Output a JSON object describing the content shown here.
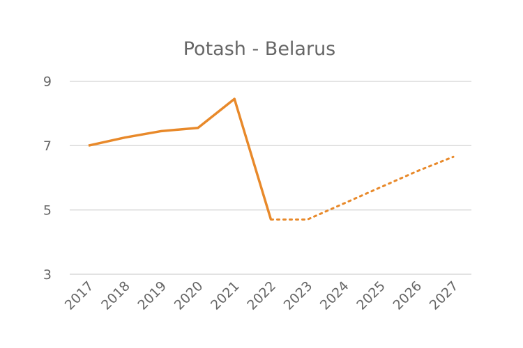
{
  "chart_data": {
    "type": "line",
    "title": "Potash - Belarus",
    "xlabel": "",
    "ylabel": "",
    "categories": [
      "2017",
      "2018",
      "2019",
      "2020",
      "2021",
      "2022",
      "2023",
      "2024",
      "2025",
      "2026",
      "2027"
    ],
    "y_ticks": [
      9,
      7,
      5,
      3
    ],
    "ylim": [
      3,
      9
    ],
    "grid": true,
    "color": "#e8892a",
    "series": [
      {
        "style": "solid",
        "x": [
          "2017",
          "2018",
          "2019",
          "2020",
          "2021",
          "2022"
        ],
        "values": [
          7.0,
          7.25,
          7.45,
          7.55,
          8.45,
          4.7
        ]
      },
      {
        "style": "dotted",
        "x": [
          "2022",
          "2023",
          "2024",
          "2025",
          "2026",
          "2027"
        ],
        "values": [
          4.7,
          4.7,
          5.2,
          5.7,
          6.2,
          6.65
        ]
      }
    ]
  }
}
